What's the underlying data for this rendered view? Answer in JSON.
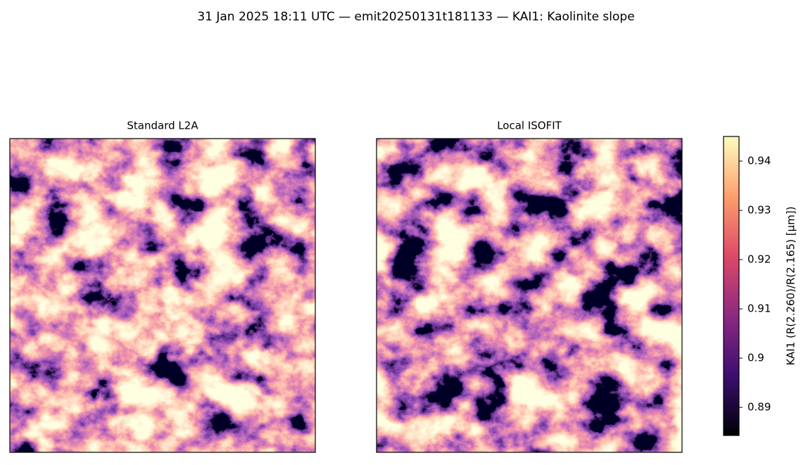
{
  "chart_data": {
    "type": "image",
    "title": "31 Jan 2025 18:11 UTC — emit20250131t181133 — KAI1: Kaolinite slope",
    "panels": [
      {
        "title": "Standard L2A"
      },
      {
        "title": "Local ISOFIT"
      }
    ],
    "colorbar": {
      "label": "KAI1  (R(2.260)/R(2.165)  [µm])",
      "colormap": "magma",
      "ylim": [
        0.8843,
        0.945
      ],
      "yticks": [
        0.89,
        0.9,
        0.91,
        0.92,
        0.93,
        0.94
      ]
    }
  }
}
